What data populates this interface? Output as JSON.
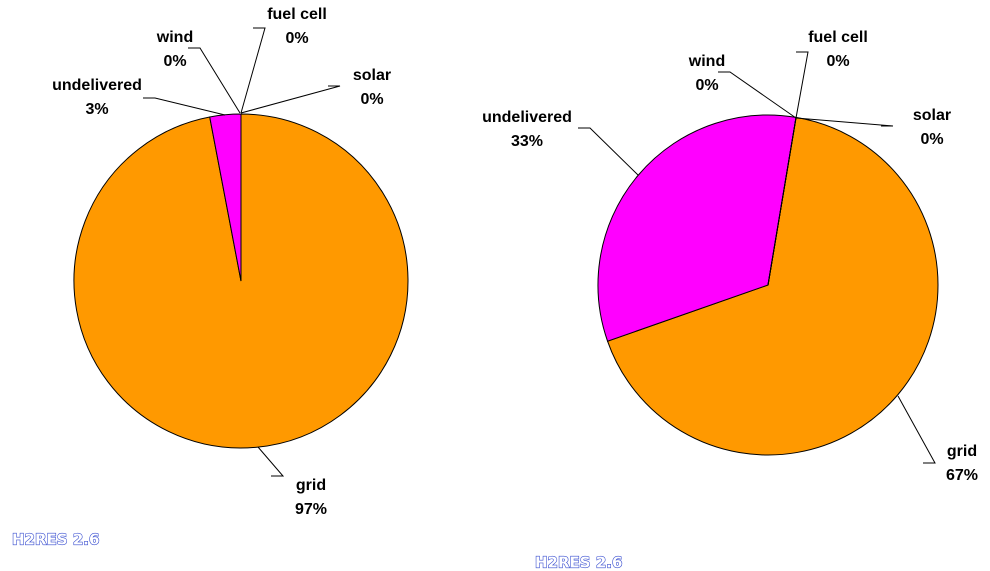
{
  "chart_data": [
    {
      "type": "pie",
      "categories": [
        "grid",
        "undelivered",
        "wind",
        "fuel cell",
        "solar"
      ],
      "values": [
        97,
        3,
        0,
        0,
        0
      ],
      "value_labels": [
        "97%",
        "3%",
        "0%",
        "0%",
        "0%"
      ],
      "colors": [
        "#ff9900",
        "#ff00ff",
        "#3366ff",
        "#00cc66",
        "#ffff00"
      ],
      "footer": "H2RES 2.6"
    },
    {
      "type": "pie",
      "categories": [
        "grid",
        "undelivered",
        "wind",
        "fuel cell",
        "solar"
      ],
      "values": [
        67,
        33,
        0,
        0,
        0
      ],
      "value_labels": [
        "67%",
        "33%",
        "0%",
        "0%",
        "0%"
      ],
      "colors": [
        "#ff9900",
        "#ff00ff",
        "#3366ff",
        "#00cc66",
        "#ffff00"
      ],
      "footer": "H2RES 2.6"
    }
  ]
}
